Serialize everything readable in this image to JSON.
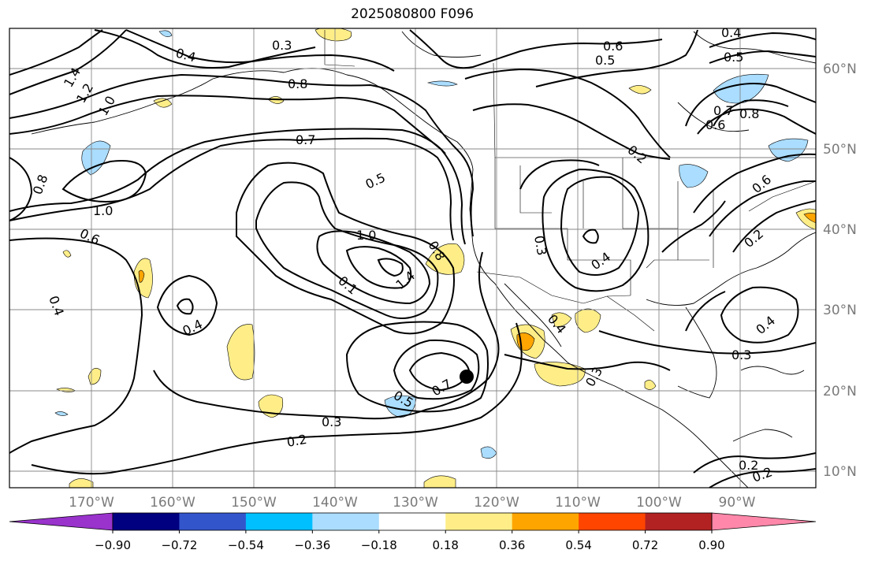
{
  "title": "2025080800 F096",
  "map": {
    "lon_ticks": [
      "170°W",
      "160°W",
      "150°W",
      "140°W",
      "130°W",
      "120°W",
      "110°W",
      "100°W",
      "90°W"
    ],
    "lat_ticks": [
      "60°N",
      "50°N",
      "40°N",
      "30°N",
      "20°N",
      "10°N"
    ],
    "extent": {
      "lon_min": -179.5,
      "lon_max": -80,
      "lat_min": 8,
      "lat_max": 65
    },
    "grid": true,
    "contour_color": "#000000",
    "contour_labels": [
      "0.3",
      "0.4",
      "0.6",
      "0.5",
      "0.4",
      "0.5",
      "1.4",
      "1.2",
      "1.0",
      "0.8",
      "0.7",
      "0.8",
      "0.7",
      "0.6",
      "0.2",
      "0.5",
      "0.8",
      "1.0",
      "0.6",
      "1.0",
      "0.8",
      "0.6",
      "0.4",
      "0.4",
      "0.4",
      "0.1",
      "1.4",
      "0.3",
      "0.4",
      "0.2",
      "0.7",
      "0.5",
      "0.3",
      "0.2",
      "0.3",
      "0.3",
      "0.4",
      "0.2",
      "0.2"
    ],
    "marker": {
      "name": "storm-center",
      "lon": -123,
      "lat": 22
    }
  },
  "colorbar": {
    "tick_labels": [
      "−0.90",
      "−0.72",
      "−0.54",
      "−0.36",
      "−0.18",
      "0.18",
      "0.36",
      "0.54",
      "0.72",
      "0.90"
    ],
    "colors": [
      "#9933cc",
      "#000080",
      "#3355cc",
      "#00bfff",
      "#aaddff",
      "#ffffff",
      "#ffee88",
      "#ffa500",
      "#ff4500",
      "#b22222",
      "#ff88aa"
    ],
    "extend": "both"
  }
}
